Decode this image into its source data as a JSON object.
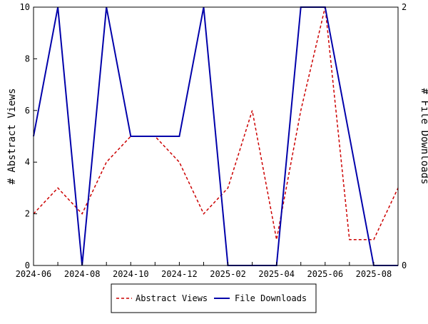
{
  "chart_data": {
    "type": "line",
    "x": [
      "2024-06",
      "2024-07",
      "2024-08",
      "2024-09",
      "2024-10",
      "2024-11",
      "2024-12",
      "2025-01",
      "2025-02",
      "2025-03",
      "2025-04",
      "2025-05",
      "2025-06",
      "2025-07",
      "2025-08",
      "2025-09"
    ],
    "x_tick_labels": [
      "2024-06",
      "2024-08",
      "2024-10",
      "2024-12",
      "2025-02",
      "2025-04",
      "2025-06",
      "2025-08"
    ],
    "y_left": {
      "label": "# Abstract Views",
      "range": [
        0,
        10
      ],
      "ticks": [
        "0",
        "2",
        "4",
        "6",
        "8",
        "10"
      ]
    },
    "y_right": {
      "label": "# File Downloads",
      "range": [
        0,
        2
      ],
      "ticks": [
        "0",
        "2"
      ]
    },
    "series": [
      {
        "name": "Abstract Views",
        "axis": "left",
        "color": "#cc0000",
        "dash": "dashed",
        "values": [
          2,
          3,
          2,
          4,
          5,
          5,
          4,
          2,
          3,
          6,
          1,
          6,
          10,
          1,
          1,
          3
        ]
      },
      {
        "name": "File Downloads",
        "axis": "right",
        "color": "#0000aa",
        "dash": "solid",
        "values": [
          1,
          2,
          0,
          2,
          1,
          1,
          1,
          2,
          0,
          0,
          0,
          2,
          2,
          1,
          0,
          0
        ]
      }
    ],
    "grid": false,
    "legend_position": "bottom"
  }
}
